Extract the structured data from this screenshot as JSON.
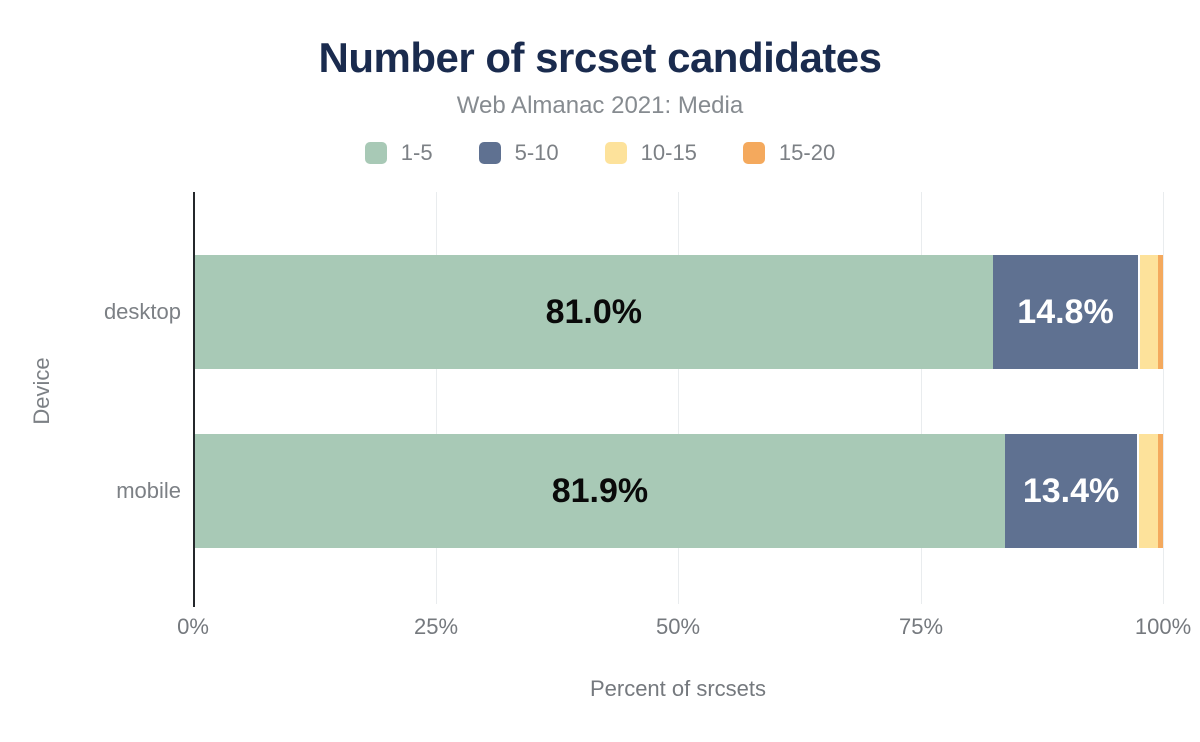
{
  "chart_data": {
    "type": "bar",
    "orientation": "horizontal",
    "stacked": true,
    "title": "Number of srcset candidates",
    "subtitle": "Web Almanac 2021: Media",
    "categories": [
      "desktop",
      "mobile"
    ],
    "series": [
      {
        "name": "1-5",
        "color": "#a8c9b6",
        "values": [
          81.0,
          81.9
        ],
        "data_labels": [
          "81.0%",
          "81.9%"
        ],
        "label_color": "#0a0a0a"
      },
      {
        "name": "5-10",
        "color": "#5f7191",
        "values": [
          14.8,
          13.4
        ],
        "data_labels": [
          "14.8%",
          "13.4%"
        ],
        "label_color": "#ffffff"
      },
      {
        "name": "10-15",
        "color": "#fde29b",
        "values": [
          2.0,
          2.1
        ],
        "data_labels": [
          null,
          null
        ],
        "label_color": null
      },
      {
        "name": "15-20",
        "color": "#f4a95d",
        "values": [
          0.5,
          0.5
        ],
        "data_labels": [
          null,
          null
        ],
        "label_color": null
      }
    ],
    "xlabel": "Percent of srcsets",
    "ylabel": "Device",
    "x_ticks": [
      "0%",
      "25%",
      "50%",
      "75%",
      "100%"
    ],
    "xlim": [
      0,
      100
    ],
    "grid": "vertical",
    "legend_position": "top"
  },
  "colors": {
    "title": "#1a2b4e",
    "subtitle": "#868b90",
    "axis_text": "#75797e",
    "category_text": "#7c8085",
    "gridline": "#e9ecee",
    "axis_line": "#24272b",
    "background": "#ffffff"
  }
}
